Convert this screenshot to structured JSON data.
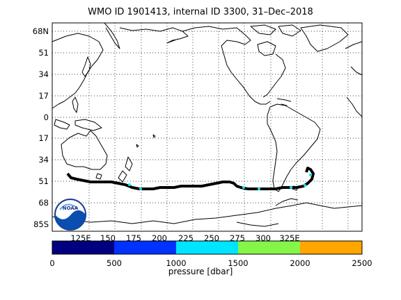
{
  "title": "WMO ID 1901413, internal ID 3300, 31–Dec–2018",
  "map": {
    "lon_ticks": [
      "125E",
      "150",
      "175",
      "200",
      "225",
      "250",
      "275",
      "300",
      "325E"
    ],
    "lat_ticks": [
      "68N",
      "51",
      "34",
      "17",
      "0",
      "17",
      "34",
      "51",
      "68",
      "85S"
    ],
    "grid": "dotted",
    "logo_text": "NOAA"
  },
  "colorbar": {
    "label": "pressure [dbar]",
    "ticks": [
      "0",
      "500",
      "1000",
      "1500",
      "2000",
      "2500"
    ],
    "range": [
      0,
      2500
    ],
    "colors": [
      "#000080",
      "#0032ff",
      "#00e5ff",
      "#85f548",
      "#ffa500"
    ]
  },
  "colors": {
    "track": "#000000",
    "track_highlight": "#00e5ff",
    "coast": "#000000"
  }
}
